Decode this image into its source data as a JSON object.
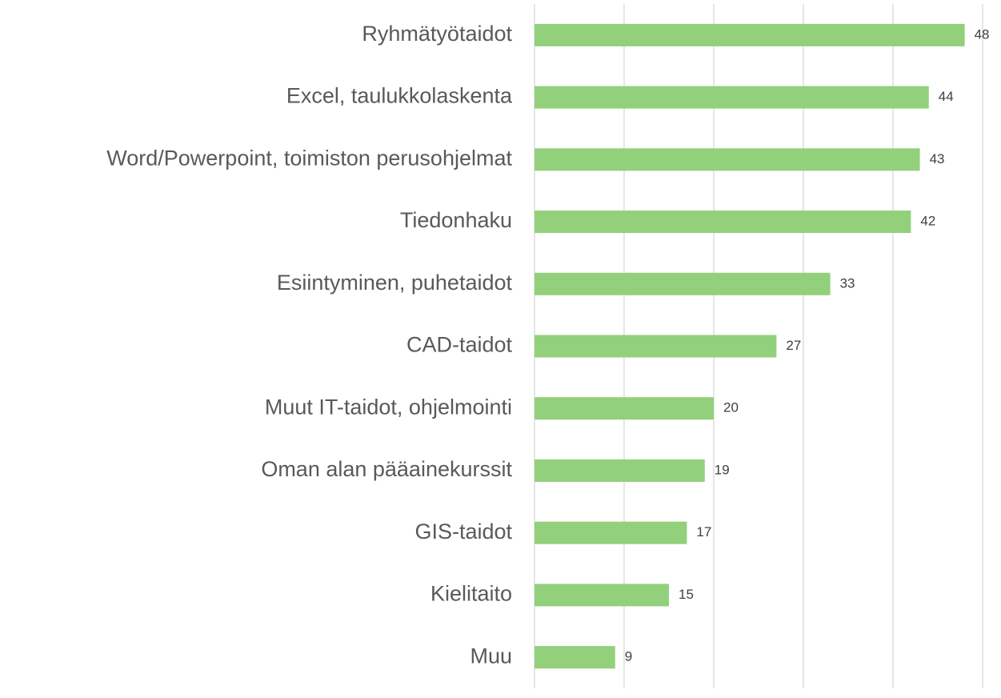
{
  "chart_data": {
    "type": "hbar",
    "categories": [
      "Ryhmätyötaidot",
      "Excel, taulukkolaskenta",
      "Word/Powerpoint, toimiston perusohjelmat",
      "Tiedonhaku",
      "Esiintyminen, puhetaidot",
      "CAD-taidot",
      "Muut IT-taidot, ohjelmointi",
      "Oman alan pääainekurssit",
      "GIS-taidot",
      "Kielitaito",
      "Muu"
    ],
    "values": [
      48,
      44,
      43,
      42,
      33,
      27,
      20,
      19,
      17,
      15,
      9
    ],
    "color": "#92d07b",
    "xlim": [
      0,
      50
    ],
    "xticks": [
      0,
      10,
      20,
      30,
      40,
      50
    ],
    "grid": true
  }
}
